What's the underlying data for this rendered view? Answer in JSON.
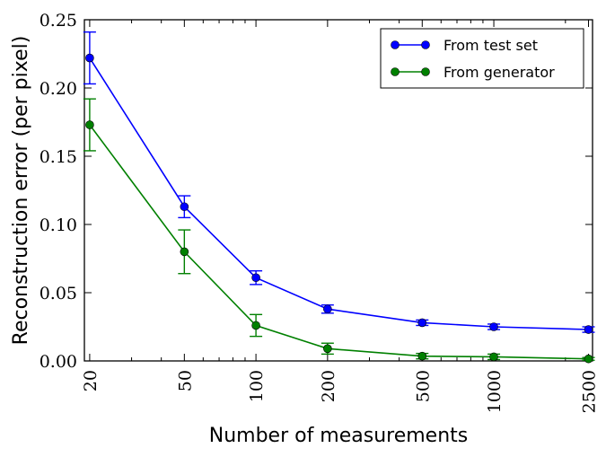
{
  "chart_data": {
    "type": "line",
    "xlabel": "Number of measurements",
    "ylabel": "Reconstruction error (per pixel)",
    "xscale": "log",
    "xlim": [
      19,
      2600
    ],
    "ylim": [
      0,
      0.25
    ],
    "x": [
      20,
      50,
      100,
      200,
      500,
      1000,
      2500
    ],
    "xtick_labels": [
      "20",
      "50",
      "100",
      "200",
      "500",
      "1000",
      "2500"
    ],
    "yticks": [
      0.0,
      0.05,
      0.1,
      0.15,
      0.2,
      0.25
    ],
    "ytick_labels": [
      "0.00",
      "0.05",
      "0.10",
      "0.15",
      "0.20",
      "0.25"
    ],
    "grid": false,
    "legend_position": "top-right",
    "series": [
      {
        "name": "From test set",
        "color": "#0000ff",
        "values": [
          0.222,
          0.113,
          0.061,
          0.038,
          0.028,
          0.025,
          0.023
        ],
        "errors": [
          0.019,
          0.008,
          0.005,
          0.003,
          0.002,
          0.002,
          0.002
        ]
      },
      {
        "name": "From generator",
        "color": "#008000",
        "values": [
          0.173,
          0.08,
          0.026,
          0.009,
          0.0035,
          0.003,
          0.0015
        ],
        "errors": [
          0.019,
          0.016,
          0.008,
          0.004,
          0.002,
          0.002,
          0.001
        ]
      }
    ]
  }
}
